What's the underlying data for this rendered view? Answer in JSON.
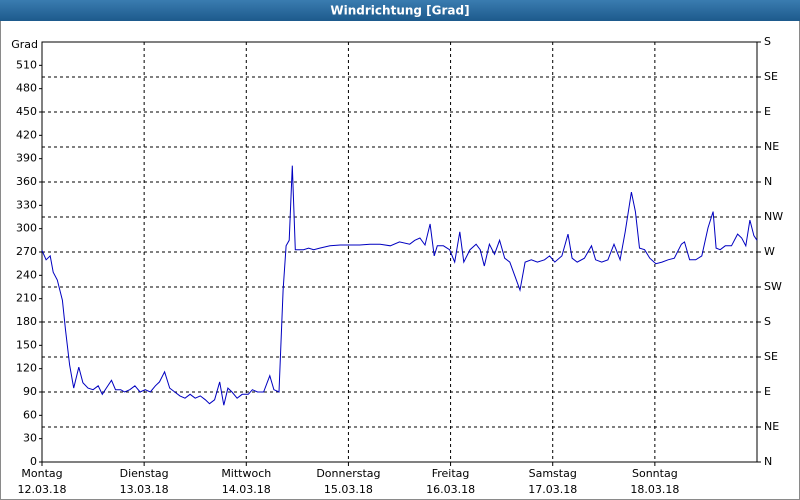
{
  "chart_data": {
    "type": "line",
    "title": "Windrichtung [Grad]",
    "y_label": "Grad",
    "weekdays": [
      "Montag",
      "Dienstag",
      "Mittwoch",
      "Donnerstag",
      "Freitag",
      "Samstag",
      "Sonntag"
    ],
    "xlim": [
      0,
      7
    ],
    "xticks": [
      {
        "value": 0,
        "label": "12.03.18"
      },
      {
        "value": 1,
        "label": "13.03.18"
      },
      {
        "value": 2,
        "label": "14.03.18"
      },
      {
        "value": 3,
        "label": "15.03.18"
      },
      {
        "value": 4,
        "label": "16.03.18"
      },
      {
        "value": 5,
        "label": "17.03.18"
      },
      {
        "value": 6,
        "label": "18.03.18"
      }
    ],
    "ylim": [
      0,
      540
    ],
    "yticks": [
      0,
      30,
      60,
      90,
      120,
      150,
      180,
      210,
      240,
      270,
      300,
      330,
      360,
      390,
      420,
      450,
      480,
      510
    ],
    "y2lim": [
      0,
      540
    ],
    "y2ticks": [
      {
        "value": 0,
        "label": "N"
      },
      {
        "value": 45,
        "label": "NE"
      },
      {
        "value": 90,
        "label": "E"
      },
      {
        "value": 135,
        "label": "SE"
      },
      {
        "value": 180,
        "label": "S"
      },
      {
        "value": 225,
        "label": "SW"
      },
      {
        "value": 270,
        "label": "W"
      },
      {
        "value": 315,
        "label": "NW"
      },
      {
        "value": 360,
        "label": "N"
      },
      {
        "value": 405,
        "label": "NE"
      },
      {
        "value": 450,
        "label": "E"
      },
      {
        "value": 495,
        "label": "SE"
      },
      {
        "value": 540,
        "label": "S"
      }
    ],
    "grid": true,
    "series": [
      {
        "name": "Windrichtung",
        "color": "#0000c0",
        "x": [
          0,
          0.04,
          0.08,
          0.11,
          0.15,
          0.2,
          0.23,
          0.27,
          0.31,
          0.36,
          0.4,
          0.45,
          0.5,
          0.55,
          0.59,
          0.63,
          0.68,
          0.72,
          0.77,
          0.81,
          0.86,
          0.91,
          0.96,
          1.01,
          1.06,
          1.11,
          1.15,
          1.2,
          1.25,
          1.3,
          1.35,
          1.4,
          1.45,
          1.5,
          1.55,
          1.6,
          1.64,
          1.69,
          1.74,
          1.78,
          1.82,
          1.86,
          1.91,
          1.96,
          2.02,
          2.06,
          2.11,
          2.17,
          2.23,
          2.27,
          2.32,
          2.36,
          2.39,
          2.42,
          2.45,
          2.48,
          2.51,
          2.56,
          2.61,
          2.66,
          2.72,
          2.82,
          2.92,
          3.01,
          3.11,
          3.21,
          3.31,
          3.41,
          3.5,
          3.6,
          3.65,
          3.7,
          3.75,
          3.8,
          3.84,
          3.87,
          3.93,
          3.99,
          4.04,
          4.09,
          4.13,
          4.19,
          4.25,
          4.29,
          4.33,
          4.38,
          4.43,
          4.48,
          4.53,
          4.58,
          4.63,
          4.68,
          4.73,
          4.79,
          4.85,
          4.92,
          4.97,
          5.02,
          5.09,
          5.15,
          5.19,
          5.24,
          5.31,
          5.38,
          5.42,
          5.48,
          5.54,
          5.6,
          5.66,
          5.71,
          5.77,
          5.81,
          5.85,
          5.9,
          5.95,
          6.01,
          6.07,
          6.13,
          6.19,
          6.26,
          6.29,
          6.34,
          6.4,
          6.46,
          6.52,
          6.57,
          6.6,
          6.64,
          6.69,
          6.75,
          6.81,
          6.85,
          6.89,
          6.93,
          6.97,
          7
        ],
        "values": [
          272,
          260,
          265,
          244,
          234,
          208,
          170,
          125,
          95,
          122,
          102,
          95,
          93,
          98,
          87,
          95,
          105,
          93,
          93,
          90,
          93,
          98,
          90,
          93,
          90,
          98,
          103,
          116,
          95,
          90,
          85,
          82,
          87,
          82,
          85,
          80,
          75,
          80,
          103,
          73,
          95,
          90,
          82,
          87,
          87,
          93,
          90,
          90,
          111,
          93,
          90,
          221,
          278,
          285,
          381,
          273,
          273,
          273,
          275,
          273,
          275,
          278,
          279,
          279,
          279,
          280,
          280,
          278,
          283,
          280,
          285,
          288,
          279,
          306,
          265,
          278,
          278,
          273,
          257,
          296,
          257,
          273,
          280,
          273,
          252,
          280,
          267,
          285,
          262,
          257,
          239,
          221,
          257,
          260,
          257,
          260,
          265,
          257,
          265,
          293,
          262,
          257,
          262,
          278,
          260,
          257,
          260,
          280,
          260,
          296,
          347,
          322,
          275,
          273,
          262,
          255,
          257,
          260,
          262,
          280,
          283,
          260,
          260,
          265,
          301,
          322,
          275,
          273,
          278,
          278,
          293,
          288,
          278,
          311,
          291,
          285
        ]
      }
    ]
  }
}
